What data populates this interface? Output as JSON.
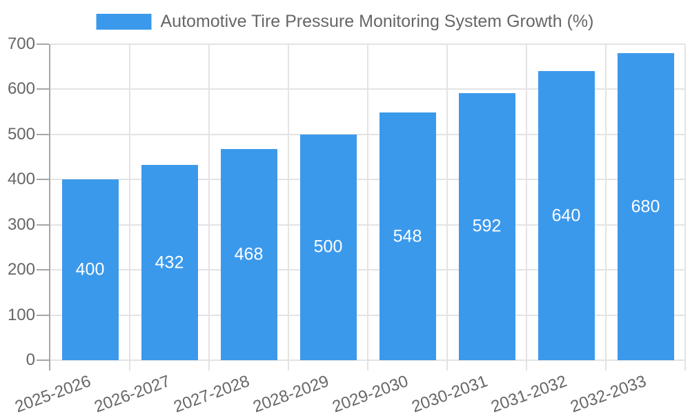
{
  "chart_data": {
    "type": "bar",
    "title": "Automotive Tire Pressure Monitoring System Growth (%)",
    "categories": [
      "2025-2026",
      "2026-2027",
      "2027-2028",
      "2028-2029",
      "2029-2030",
      "2030-2031",
      "2031-2032",
      "2032-2033"
    ],
    "values": [
      400,
      432,
      468,
      500,
      548,
      592,
      640,
      680
    ],
    "xlabel": "",
    "ylabel": "",
    "ylim": [
      0,
      700
    ],
    "y_ticks": [
      0,
      100,
      200,
      300,
      400,
      500,
      600,
      700
    ],
    "x_label_rotation_deg": -20,
    "grid": true,
    "legend_position": "top",
    "colors": {
      "bar": "#3b99ec",
      "bar_label_text": "#ffffff",
      "axis_text": "#666666",
      "legend_text": "#666666",
      "axis_line": "#a6a6a6",
      "gridline": "#e3e3e3",
      "background": "#ffffff"
    }
  }
}
